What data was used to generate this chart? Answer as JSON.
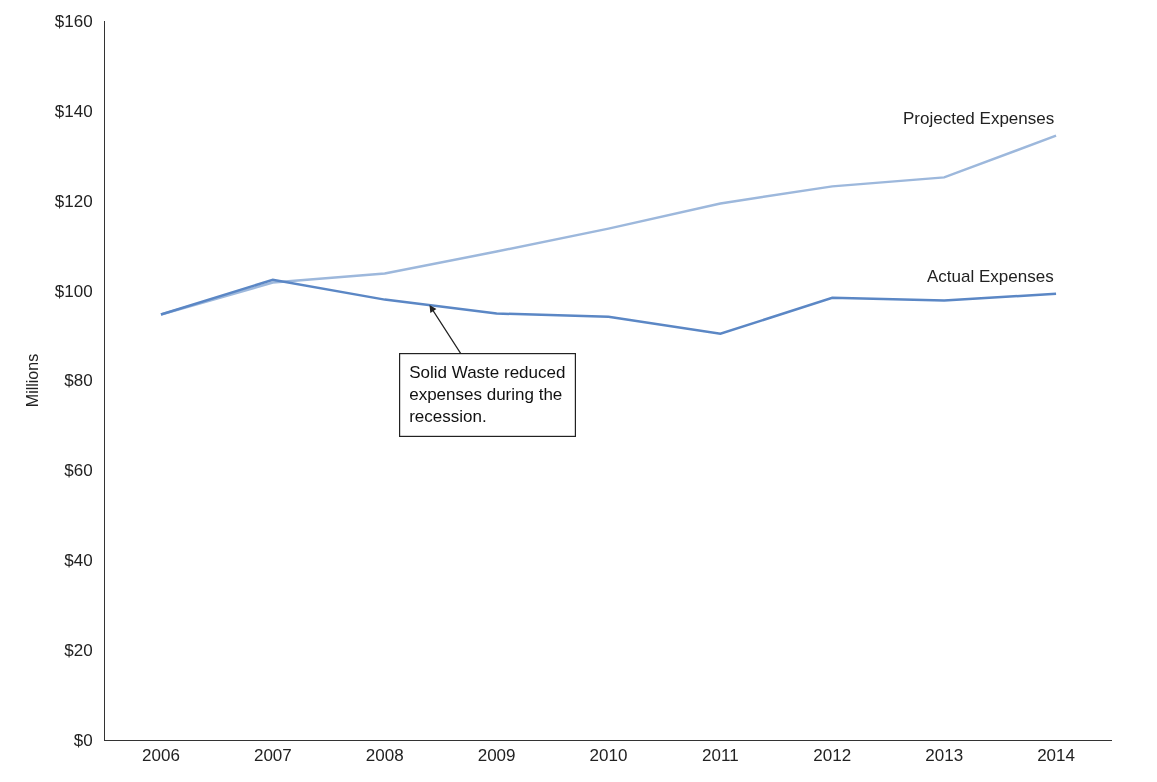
{
  "chart_data": {
    "type": "line",
    "ylabel": "Millions",
    "x": [
      2006,
      2007,
      2008,
      2009,
      2010,
      2011,
      2012,
      2013,
      2014
    ],
    "series": [
      {
        "name": "Projected Expenses",
        "color": "#9db8dc",
        "values": [
          94.7,
          101.8,
          103.8,
          108.7,
          113.8,
          119.4,
          123.2,
          125.2,
          134.5
        ]
      },
      {
        "name": "Actual Expenses",
        "color": "#5b87c5",
        "values": [
          94.7,
          102.4,
          98,
          94.9,
          94.2,
          90.4,
          98.4,
          97.8,
          99.3
        ]
      }
    ],
    "xlim": [
      2005.5,
      2014.5
    ],
    "xticks": [
      2006,
      2007,
      2008,
      2009,
      2010,
      2011,
      2012,
      2013,
      2014
    ],
    "ylim": [
      0,
      160
    ],
    "yticks": [
      {
        "value": 0,
        "label": "$0"
      },
      {
        "value": 20,
        "label": "$20"
      },
      {
        "value": 40,
        "label": "$40"
      },
      {
        "value": 60,
        "label": "$60"
      },
      {
        "value": 80,
        "label": "$80"
      },
      {
        "value": 100,
        "label": "$100"
      },
      {
        "value": 120,
        "label": "$120"
      },
      {
        "value": 140,
        "label": "$140"
      },
      {
        "value": 160,
        "label": "$160"
      }
    ],
    "annotations": [
      {
        "text": "Solid Waste reduced expenses during the recession.",
        "x": 2008.4,
        "y": 96.8
      }
    ],
    "grid": false,
    "legend": false,
    "marker": "none",
    "line_style": "solid"
  }
}
